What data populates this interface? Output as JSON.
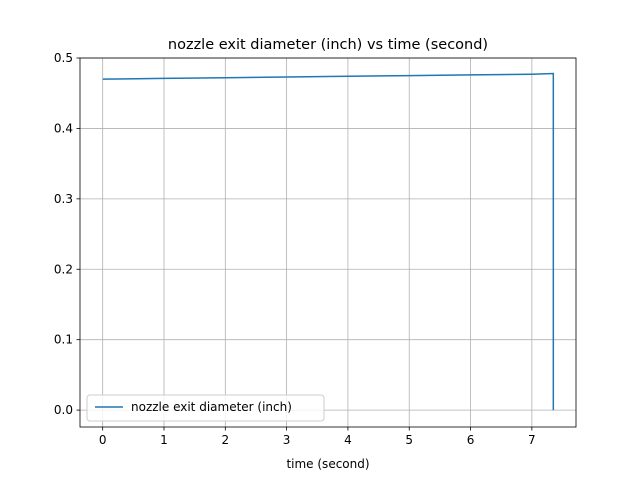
{
  "chart_data": {
    "type": "line",
    "title": "nozzle exit diameter (inch) vs time (second)",
    "xlabel": "time (second)",
    "ylabel": "",
    "xlim": [
      -0.37,
      7.72
    ],
    "ylim": [
      -0.024,
      0.5
    ],
    "xticks": [
      0,
      1,
      2,
      3,
      4,
      5,
      6,
      7
    ],
    "yticks": [
      0.0,
      0.1,
      0.2,
      0.3,
      0.4,
      0.5
    ],
    "xtick_labels": [
      "0",
      "1",
      "2",
      "3",
      "4",
      "5",
      "6",
      "7"
    ],
    "ytick_labels": [
      "0.0",
      "0.1",
      "0.2",
      "0.3",
      "0.4",
      "0.5"
    ],
    "grid": true,
    "legend_position": "lower-left",
    "series": [
      {
        "name": "nozzle exit diameter (inch)",
        "color": "#1f77b4",
        "x": [
          0,
          1,
          2,
          3,
          4,
          5,
          6,
          7,
          7.35,
          7.35
        ],
        "y": [
          0.47,
          0.471,
          0.472,
          0.473,
          0.474,
          0.475,
          0.476,
          0.477,
          0.478,
          0.0
        ]
      }
    ]
  }
}
